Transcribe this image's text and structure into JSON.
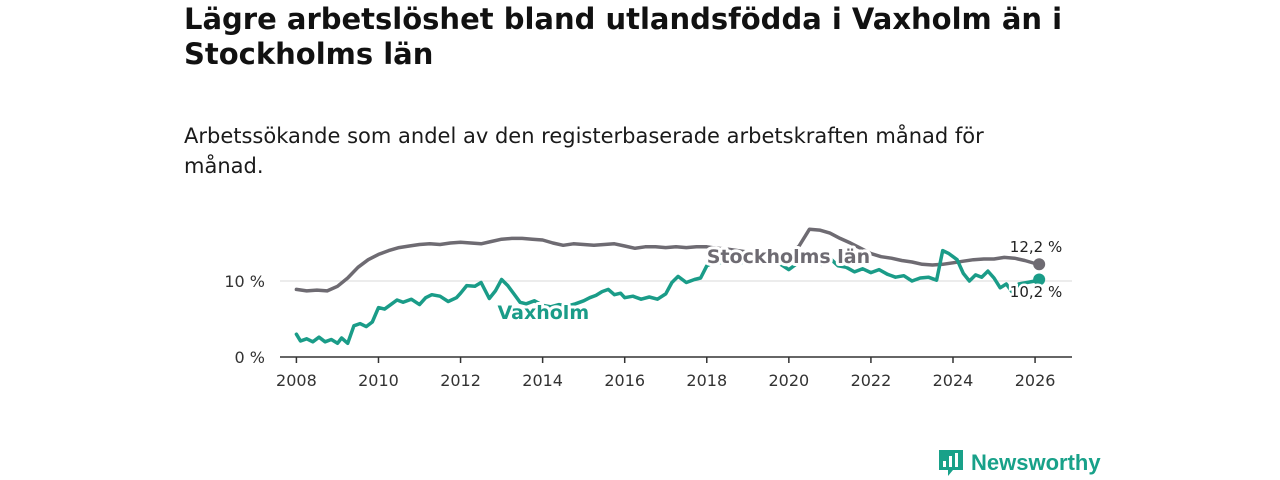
{
  "title": "Lägre arbetslöshet bland utlandsfödda i Vaxholm än i Stockholms län",
  "subtitle": "Arbetssökande som andel av den registerbaserade arbetskraften månad för månad.",
  "brand": {
    "name": "Newsworthy",
    "logo_icon": "bar-chart-icon"
  },
  "colors": {
    "stockholm": "#6e6b72",
    "vaxholm": "#1a9c88",
    "axis": "#333333",
    "grid": "#d9d9d9"
  },
  "chart_data": {
    "type": "line",
    "title": "Lägre arbetslöshet bland utlandsfödda i Vaxholm än i Stockholms län",
    "xlabel": "",
    "ylabel": "",
    "xlim": [
      2007.6,
      2026.9
    ],
    "ylim": [
      0,
      20
    ],
    "x_ticks": [
      {
        "value": 2008,
        "label": "2008"
      },
      {
        "value": 2010,
        "label": "2010"
      },
      {
        "value": 2012,
        "label": "2012"
      },
      {
        "value": 2014,
        "label": "2014"
      },
      {
        "value": 2016,
        "label": "2016"
      },
      {
        "value": 2018,
        "label": "2018"
      },
      {
        "value": 2020,
        "label": "2020"
      },
      {
        "value": 2022,
        "label": "2022"
      },
      {
        "value": 2024,
        "label": "2024"
      },
      {
        "value": 2026,
        "label": "2026"
      }
    ],
    "y_ticks": [
      {
        "value": 0,
        "label": "0 %"
      },
      {
        "value": 10,
        "label": "10 %"
      }
    ],
    "series": [
      {
        "name": "Stockholms län",
        "label": "Stockholms län",
        "end_label": "12,2 %",
        "end_value": 12.2,
        "color": "#6e6b72",
        "points": [
          [
            2008.0,
            8.9
          ],
          [
            2008.25,
            8.7
          ],
          [
            2008.5,
            8.8
          ],
          [
            2008.75,
            8.7
          ],
          [
            2009.0,
            9.3
          ],
          [
            2009.25,
            10.4
          ],
          [
            2009.5,
            11.8
          ],
          [
            2009.75,
            12.8
          ],
          [
            2010.0,
            13.5
          ],
          [
            2010.25,
            14.0
          ],
          [
            2010.5,
            14.4
          ],
          [
            2010.75,
            14.6
          ],
          [
            2011.0,
            14.8
          ],
          [
            2011.25,
            14.9
          ],
          [
            2011.5,
            14.8
          ],
          [
            2011.75,
            15.0
          ],
          [
            2012.0,
            15.1
          ],
          [
            2012.25,
            15.0
          ],
          [
            2012.5,
            14.9
          ],
          [
            2012.75,
            15.2
          ],
          [
            2013.0,
            15.5
          ],
          [
            2013.25,
            15.6
          ],
          [
            2013.5,
            15.6
          ],
          [
            2013.75,
            15.5
          ],
          [
            2014.0,
            15.4
          ],
          [
            2014.25,
            15.0
          ],
          [
            2014.5,
            14.7
          ],
          [
            2014.75,
            14.9
          ],
          [
            2015.0,
            14.8
          ],
          [
            2015.25,
            14.7
          ],
          [
            2015.5,
            14.8
          ],
          [
            2015.75,
            14.9
          ],
          [
            2016.0,
            14.6
          ],
          [
            2016.25,
            14.3
          ],
          [
            2016.5,
            14.5
          ],
          [
            2016.75,
            14.5
          ],
          [
            2017.0,
            14.4
          ],
          [
            2017.25,
            14.5
          ],
          [
            2017.5,
            14.4
          ],
          [
            2017.75,
            14.5
          ],
          [
            2018.0,
            14.5
          ],
          [
            2018.25,
            14.3
          ],
          [
            2018.5,
            14.2
          ],
          [
            2018.75,
            14.0
          ],
          [
            2019.0,
            13.8
          ],
          [
            2019.25,
            13.6
          ],
          [
            2019.5,
            13.6
          ],
          [
            2019.75,
            13.5
          ],
          [
            2020.0,
            13.4
          ],
          [
            2020.25,
            14.6
          ],
          [
            2020.5,
            16.8
          ],
          [
            2020.75,
            16.7
          ],
          [
            2021.0,
            16.3
          ],
          [
            2021.25,
            15.6
          ],
          [
            2021.5,
            15.0
          ],
          [
            2021.75,
            14.3
          ],
          [
            2022.0,
            13.6
          ],
          [
            2022.25,
            13.2
          ],
          [
            2022.5,
            13.0
          ],
          [
            2022.75,
            12.7
          ],
          [
            2023.0,
            12.5
          ],
          [
            2023.25,
            12.2
          ],
          [
            2023.5,
            12.1
          ],
          [
            2023.75,
            12.2
          ],
          [
            2024.0,
            12.4
          ],
          [
            2024.25,
            12.6
          ],
          [
            2024.5,
            12.8
          ],
          [
            2024.75,
            12.9
          ],
          [
            2025.0,
            12.9
          ],
          [
            2025.25,
            13.1
          ],
          [
            2025.5,
            13.0
          ],
          [
            2025.75,
            12.7
          ],
          [
            2026.0,
            12.3
          ],
          [
            2026.1,
            12.2
          ]
        ]
      },
      {
        "name": "Vaxholm",
        "label": "Vaxholm",
        "end_label": "10,2 %",
        "end_value": 10.2,
        "color": "#1a9c88",
        "points": [
          [
            2008.0,
            3.0
          ],
          [
            2008.1,
            2.1
          ],
          [
            2008.25,
            2.4
          ],
          [
            2008.4,
            2.0
          ],
          [
            2008.55,
            2.6
          ],
          [
            2008.7,
            2.0
          ],
          [
            2008.85,
            2.3
          ],
          [
            2009.0,
            1.8
          ],
          [
            2009.1,
            2.5
          ],
          [
            2009.25,
            1.8
          ],
          [
            2009.4,
            4.1
          ],
          [
            2009.55,
            4.4
          ],
          [
            2009.7,
            4.0
          ],
          [
            2009.85,
            4.6
          ],
          [
            2010.0,
            6.5
          ],
          [
            2010.15,
            6.3
          ],
          [
            2010.3,
            6.9
          ],
          [
            2010.45,
            7.5
          ],
          [
            2010.6,
            7.2
          ],
          [
            2010.8,
            7.6
          ],
          [
            2011.0,
            6.9
          ],
          [
            2011.15,
            7.8
          ],
          [
            2011.3,
            8.2
          ],
          [
            2011.5,
            8.0
          ],
          [
            2011.7,
            7.3
          ],
          [
            2011.9,
            7.8
          ],
          [
            2012.0,
            8.4
          ],
          [
            2012.15,
            9.4
          ],
          [
            2012.35,
            9.3
          ],
          [
            2012.5,
            9.8
          ],
          [
            2012.7,
            7.7
          ],
          [
            2012.85,
            8.7
          ],
          [
            2013.0,
            10.2
          ],
          [
            2013.15,
            9.4
          ],
          [
            2013.3,
            8.3
          ],
          [
            2013.45,
            7.2
          ],
          [
            2013.6,
            7.0
          ],
          [
            2013.8,
            7.4
          ],
          [
            2014.0,
            6.8
          ],
          [
            2014.2,
            6.6
          ],
          [
            2014.4,
            6.9
          ],
          [
            2014.6,
            6.7
          ],
          [
            2014.8,
            7.0
          ],
          [
            2015.0,
            7.4
          ],
          [
            2015.15,
            7.8
          ],
          [
            2015.3,
            8.1
          ],
          [
            2015.45,
            8.6
          ],
          [
            2015.6,
            8.9
          ],
          [
            2015.75,
            8.2
          ],
          [
            2015.9,
            8.4
          ],
          [
            2016.0,
            7.8
          ],
          [
            2016.2,
            8.0
          ],
          [
            2016.4,
            7.6
          ],
          [
            2016.6,
            7.9
          ],
          [
            2016.8,
            7.6
          ],
          [
            2017.0,
            8.3
          ],
          [
            2017.15,
            9.8
          ],
          [
            2017.3,
            10.6
          ],
          [
            2017.5,
            9.8
          ],
          [
            2017.7,
            10.2
          ],
          [
            2017.85,
            10.4
          ],
          [
            2018.0,
            12.0
          ],
          [
            2018.2,
            12.5
          ],
          [
            2018.4,
            12.4
          ],
          [
            2018.6,
            12.6
          ],
          [
            2018.8,
            12.3
          ],
          [
            2019.0,
            12.8
          ],
          [
            2019.2,
            12.5
          ],
          [
            2019.4,
            12.3
          ],
          [
            2019.6,
            12.7
          ],
          [
            2019.8,
            12.2
          ],
          [
            2020.0,
            11.5
          ],
          [
            2020.2,
            12.3
          ],
          [
            2020.4,
            13.6
          ],
          [
            2020.6,
            13.0
          ],
          [
            2020.8,
            12.2
          ],
          [
            2021.0,
            13.0
          ],
          [
            2021.2,
            12.0
          ],
          [
            2021.4,
            11.8
          ],
          [
            2021.6,
            11.2
          ],
          [
            2021.8,
            11.6
          ],
          [
            2022.0,
            11.1
          ],
          [
            2022.2,
            11.5
          ],
          [
            2022.4,
            10.9
          ],
          [
            2022.6,
            10.5
          ],
          [
            2022.8,
            10.7
          ],
          [
            2023.0,
            10.0
          ],
          [
            2023.2,
            10.4
          ],
          [
            2023.4,
            10.5
          ],
          [
            2023.6,
            10.1
          ],
          [
            2023.75,
            14.0
          ],
          [
            2023.9,
            13.6
          ],
          [
            2024.1,
            12.8
          ],
          [
            2024.25,
            11.0
          ],
          [
            2024.4,
            10.0
          ],
          [
            2024.55,
            10.8
          ],
          [
            2024.7,
            10.5
          ],
          [
            2024.85,
            11.3
          ],
          [
            2025.0,
            10.4
          ],
          [
            2025.15,
            9.1
          ],
          [
            2025.3,
            9.6
          ],
          [
            2025.45,
            8.5
          ],
          [
            2025.6,
            9.6
          ],
          [
            2025.8,
            9.8
          ],
          [
            2026.0,
            10.0
          ],
          [
            2026.1,
            10.2
          ]
        ]
      }
    ]
  }
}
